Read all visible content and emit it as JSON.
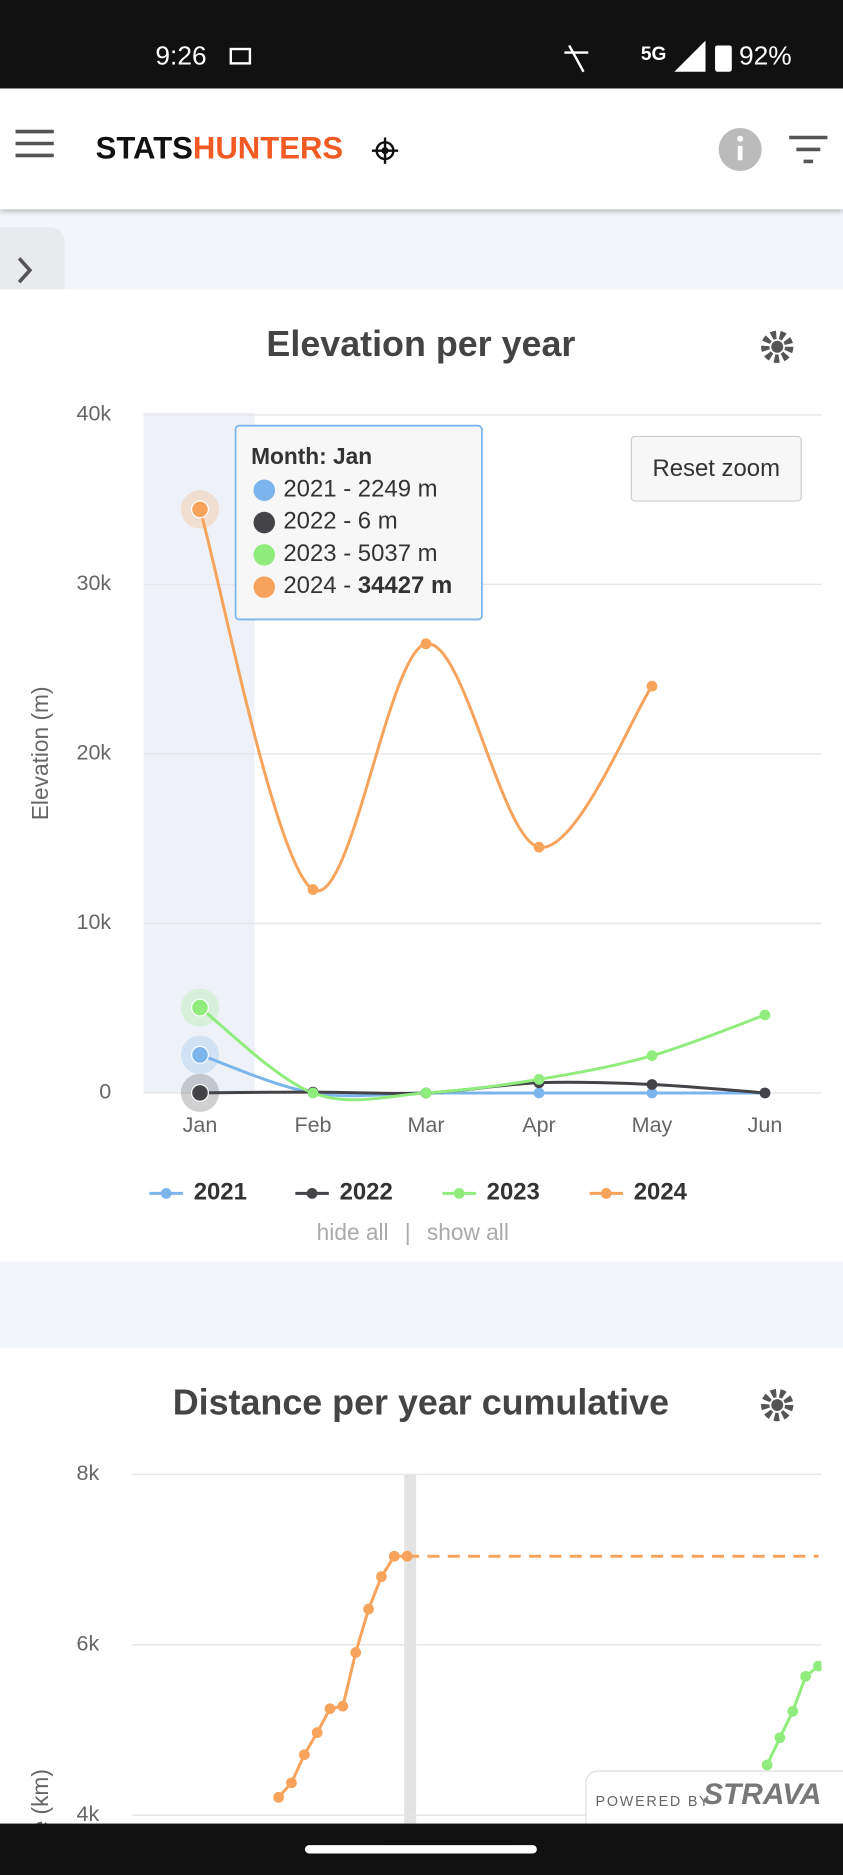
{
  "status_bar": {
    "time": "9:26",
    "network": "5G",
    "battery": "92%"
  },
  "header": {
    "brand_dark": "STATS",
    "brand_accent": "HUNTERS"
  },
  "chart_data": [
    {
      "type": "line",
      "title": "Elevation per year",
      "y_label": "Elevation (m)",
      "smooth": true,
      "grid": true,
      "legend": "bottom",
      "categories": [
        "Jan",
        "Feb",
        "Mar",
        "Apr",
        "May",
        "Jun"
      ],
      "ylim": [
        0,
        40000
      ],
      "yticks": [
        0,
        {
          "value": 10000,
          "label": "10k"
        },
        {
          "value": 20000,
          "label": "20k"
        },
        {
          "value": 30000,
          "label": "30k"
        },
        {
          "value": 40000,
          "label": "40k"
        }
      ],
      "series": [
        {
          "name": "2021",
          "color": "#7cb5ec",
          "values": [
            2249,
            0,
            0,
            0,
            0,
            0
          ]
        },
        {
          "name": "2022",
          "color": "#434348",
          "values": [
            6,
            50,
            0,
            600,
            500,
            0
          ]
        },
        {
          "name": "2023",
          "color": "#90ed7d",
          "values": [
            5037,
            0,
            0,
            800,
            2200,
            4600
          ]
        },
        {
          "name": "2024",
          "color": "#f7a35c",
          "values": [
            34427,
            12000,
            26500,
            14500,
            24000,
            null
          ]
        }
      ],
      "tooltip": {
        "title": "Month: Jan",
        "lines": [
          {
            "text": "2021 - 2249 m"
          },
          {
            "text": "2022 - 6 m"
          },
          {
            "text": "2023 - 5037 m"
          },
          {
            "text": "2024 - ",
            "bold": "34427 m"
          }
        ]
      },
      "reset_zoom": "Reset zoom",
      "legend_actions": {
        "hide": "hide all",
        "separator": "|",
        "show": "show all"
      }
    },
    {
      "type": "line",
      "title": "Distance per year cumulative",
      "y_label": "Distance (km)",
      "smooth": false,
      "grid": true,
      "categories": [
        null,
        null,
        null,
        null,
        null,
        null,
        null,
        null,
        null,
        null,
        null,
        null,
        null,
        null,
        null,
        null,
        null,
        null,
        null,
        null,
        null,
        null,
        null,
        null,
        null,
        null,
        null,
        null,
        null,
        null,
        null,
        null,
        null,
        null,
        null,
        null,
        null,
        null,
        null,
        null,
        null,
        null,
        null
      ],
      "ylim": [
        4000,
        8000
      ],
      "yticks": [
        {
          "value": 4000,
          "label": "4k"
        },
        {
          "value": 6000,
          "label": "6k"
        },
        {
          "value": 8000,
          "label": "8k"
        }
      ],
      "series": [
        {
          "color": "#f7a35c",
          "values": [
            4210,
            4380,
            4710,
            4970,
            5250,
            5280,
            5910,
            6420,
            6800,
            7040,
            7040,
            null,
            null,
            null,
            null,
            null,
            null,
            null,
            null,
            null,
            null,
            null,
            null,
            null,
            null,
            null,
            null,
            null,
            null,
            null,
            null,
            null,
            null,
            null,
            null,
            null,
            null,
            null,
            null,
            null,
            null,
            null,
            null
          ]
        },
        {
          "color": "#f7a35c",
          "dash": true,
          "values": [
            null,
            null,
            null,
            null,
            null,
            null,
            null,
            null,
            null,
            null,
            7040,
            7040,
            7040,
            7040,
            7040,
            7040,
            7040,
            7040,
            7040,
            7040,
            7040,
            7040,
            7040,
            7040,
            7040,
            7040,
            7040,
            7040,
            7040,
            7040,
            7040,
            7040,
            7040,
            7040,
            7040,
            7040,
            7040,
            7040,
            7040,
            7040,
            7040,
            7040,
            7040
          ]
        },
        {
          "color": "#90ed7d",
          "values": [
            null,
            null,
            null,
            null,
            null,
            null,
            null,
            null,
            null,
            null,
            null,
            null,
            null,
            null,
            null,
            null,
            null,
            null,
            null,
            null,
            null,
            null,
            null,
            null,
            null,
            null,
            null,
            null,
            null,
            null,
            null,
            null,
            null,
            null,
            null,
            null,
            null,
            null,
            4590,
            4910,
            5220,
            5630,
            5750
          ]
        }
      ]
    }
  ],
  "footer": {
    "powered_by": "POWERED BY",
    "brand": "STRAVA"
  }
}
